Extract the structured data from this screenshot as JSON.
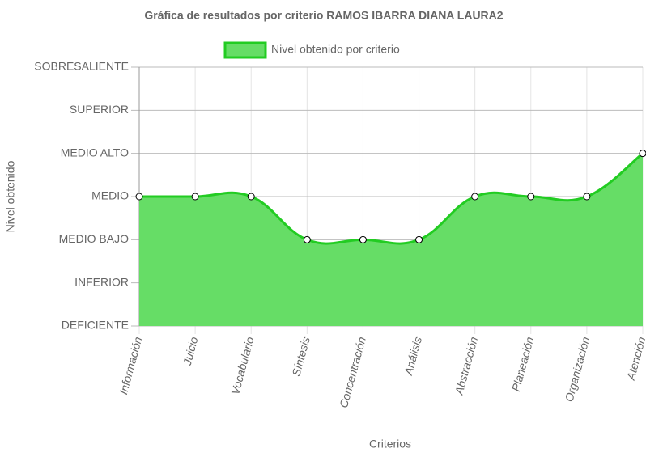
{
  "chart_data": {
    "type": "line",
    "title": "Gráfica de resultados por criterio RAMOS IBARRA DIANA LAURA2",
    "x_label": "Criterios",
    "y_label": "Nivel obtenido",
    "categories": [
      "Información",
      "Juicio",
      "Vocabulario",
      "Síntesis",
      "Concentración",
      "Análisis",
      "Abstracción",
      "Planeación",
      "Organización",
      "Atención"
    ],
    "series": [
      {
        "name": "Nivel obtenido por criterio",
        "color": "#22cc22",
        "fill": "#66dd66",
        "values": [
          3,
          3,
          3,
          2,
          2,
          2,
          3,
          3,
          3,
          4
        ]
      }
    ],
    "ylim": [
      0,
      6
    ],
    "yticks": [
      {
        "value": 0,
        "label": "DEFICIENTE"
      },
      {
        "value": 1,
        "label": "INFERIOR"
      },
      {
        "value": 2,
        "label": "MEDIO BAJO"
      },
      {
        "value": 3,
        "label": "MEDIO"
      },
      {
        "value": 4,
        "label": "MEDIO ALTO"
      },
      {
        "value": 5,
        "label": "SUPERIOR"
      },
      {
        "value": 6,
        "label": "SOBRESALIENTE"
      }
    ],
    "grid": true,
    "legend": "top"
  }
}
